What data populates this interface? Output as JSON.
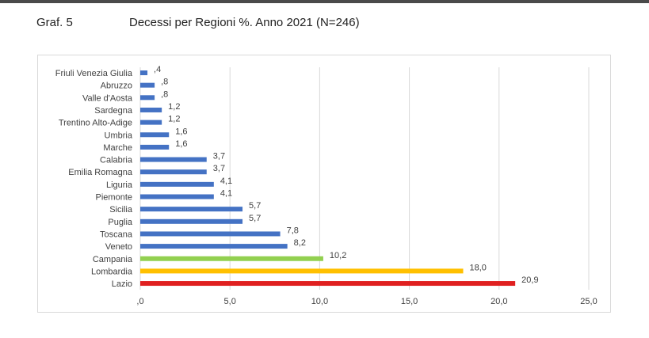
{
  "header": {
    "figure_number": "Graf. 5",
    "title": "Decessi per Regioni %. Anno 2021 (N=246)"
  },
  "chart_data": {
    "type": "bar",
    "orientation": "horizontal",
    "categories": [
      "Friuli Venezia Giulia",
      "Abruzzo",
      "Valle d'Aosta",
      "Sardegna",
      "Trentino Alto-Adige",
      "Umbria",
      "Marche",
      "Calabria",
      "Emilia Romagna",
      "Liguria",
      "Piemonte",
      "Sicilia",
      "Puglia",
      "Toscana",
      "Veneto",
      "Campania",
      "Lombardia",
      "Lazio"
    ],
    "values": [
      0.4,
      0.8,
      0.8,
      1.2,
      1.2,
      1.6,
      1.6,
      3.7,
      3.7,
      4.1,
      4.1,
      5.7,
      5.7,
      7.8,
      8.2,
      10.2,
      18.0,
      20.9
    ],
    "value_labels": [
      ",4",
      ",8",
      ",8",
      "1,2",
      "1,2",
      "1,6",
      "1,6",
      "3,7",
      "3,7",
      "4,1",
      "4,1",
      "5,7",
      "5,7",
      "7,8",
      "8,2",
      "10,2",
      "18,0",
      "20,9"
    ],
    "bar_colors": [
      "#4472c4",
      "#4472c4",
      "#4472c4",
      "#4472c4",
      "#4472c4",
      "#4472c4",
      "#4472c4",
      "#4472c4",
      "#4472c4",
      "#4472c4",
      "#4472c4",
      "#4472c4",
      "#4472c4",
      "#4472c4",
      "#4472c4",
      "#92d050",
      "#ffc000",
      "#e02020"
    ],
    "x_ticks": [
      0,
      5,
      10,
      15,
      20,
      25
    ],
    "x_tick_labels": [
      ",0",
      "5,0",
      "10,0",
      "15,0",
      "20,0",
      "25,0"
    ],
    "xlim": [
      0,
      25
    ],
    "grid": "vertical",
    "legend": "none",
    "xlabel": "",
    "ylabel": ""
  }
}
